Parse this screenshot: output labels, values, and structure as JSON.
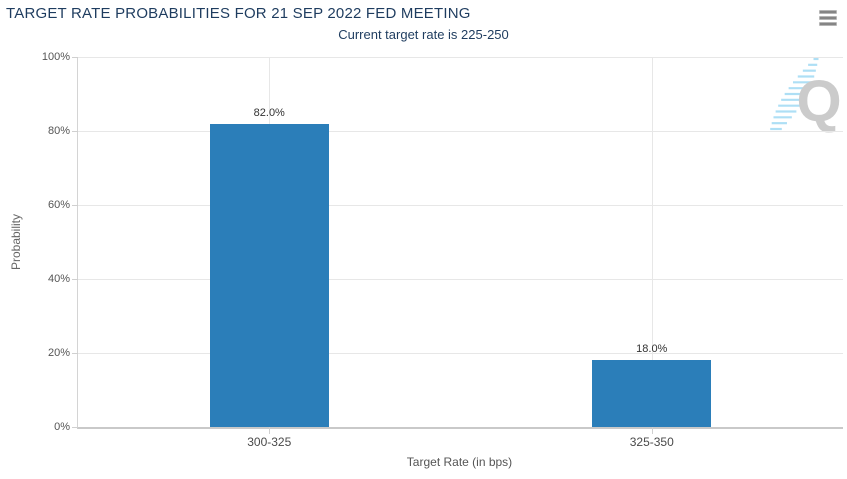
{
  "chart_data": {
    "type": "bar",
    "title": "TARGET RATE PROBABILITIES FOR 21 SEP 2022 FED MEETING",
    "subtitle": "Current target rate is 225-250",
    "categories": [
      "300-325",
      "325-350"
    ],
    "values": [
      82.0,
      18.0
    ],
    "value_labels": [
      "82.0%",
      "18.0%"
    ],
    "xlabel": "Target Rate (in bps)",
    "ylabel": "Probability",
    "ylim": [
      0,
      100
    ],
    "yticks": [
      "0%",
      "20%",
      "40%",
      "60%",
      "80%",
      "100%"
    ],
    "grid": true,
    "legend": false,
    "bar_color": "#2b7eb9"
  },
  "toolbar": {
    "menu_icon": "hamburger-menu-icon"
  },
  "watermark": {
    "letter": "Q",
    "dash_color": "#aadef5",
    "letter_color": "#c9c9c9"
  },
  "colors": {
    "title": "#1e3c5f",
    "grid": "#e7e7e7",
    "axis_line": "#c9c9c9",
    "tick_label": "#555555",
    "data_label": "#333333"
  }
}
